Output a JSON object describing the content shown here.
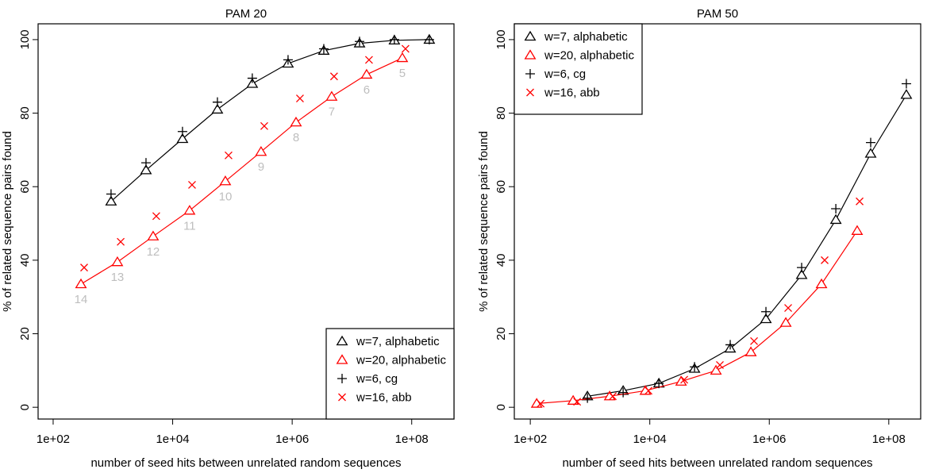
{
  "chart_data": [
    {
      "type": "scatter",
      "title": "PAM 20",
      "x_label": "number of seed hits between unrelated random sequences",
      "y_label": "% of related sequence pairs found",
      "log_x": true,
      "xlim": [
        56,
        510000000
      ],
      "ylim": [
        -3.2,
        104.3
      ],
      "xticks": [
        {
          "value": 100,
          "label": "1e+02"
        },
        {
          "value": 10000,
          "label": "1e+04"
        },
        {
          "value": 1000000,
          "label": "1e+06"
        },
        {
          "value": 100000000,
          "label": "1e+08"
        }
      ],
      "yticks": [
        0,
        20,
        40,
        60,
        80,
        100
      ],
      "legend": "bottomright",
      "series": [
        {
          "name": "w=7, alphabetic",
          "color": "#000000",
          "marker": "triangle",
          "line": true,
          "x": [
            931,
            3580,
            14600,
            56100,
            215000,
            853000,
            3380000,
            13400000,
            51300000,
            197000000
          ],
          "values": [
            56,
            64.5,
            73,
            81,
            88,
            93.5,
            97,
            99,
            99.8,
            100
          ]
        },
        {
          "name": "w=20, alphabetic",
          "color": "#ff0000",
          "marker": "triangle",
          "line": true,
          "x": [
            292,
            1190,
            4710,
            19200,
            76200,
            301000,
            1160000,
            4580000,
            17600000,
            69700000
          ],
          "values": [
            33.5,
            39.5,
            46.5,
            53.5,
            61.5,
            69.5,
            77.5,
            84.5,
            90.5,
            95
          ],
          "point_labels": [
            "14",
            "13",
            "12",
            "11",
            "10",
            "9",
            "8",
            "7",
            "6",
            "5"
          ],
          "point_label_color": "#bebebe"
        },
        {
          "name": "w=6, cg",
          "color": "#000000",
          "marker": "plus",
          "line": false,
          "x": [
            931,
            3580,
            14600,
            56100,
            215000,
            853000,
            3380000,
            13400000,
            51300000,
            197000000
          ],
          "values": [
            58,
            66.5,
            75,
            83,
            89.5,
            94.5,
            97.5,
            99.5,
            100,
            100
          ]
        },
        {
          "name": "w=16, abb",
          "color": "#ff0000",
          "marker": "x",
          "line": false,
          "x": [
            330,
            1350,
            5320,
            21100,
            86100,
            341000,
            1350000,
            5020000,
            19300000,
            78700000
          ],
          "values": [
            38,
            45,
            52,
            60.5,
            68.5,
            76.5,
            84,
            90,
            94.5,
            97.5
          ]
        }
      ]
    },
    {
      "type": "scatter",
      "title": "PAM 50",
      "x_label": "number of seed hits between unrelated random sequences",
      "y_label": "% of related sequence pairs found",
      "log_x": true,
      "xlim": [
        54,
        342000000
      ],
      "ylim": [
        -3.2,
        104.3
      ],
      "xticks": [
        {
          "value": 100,
          "label": "1e+02"
        },
        {
          "value": 10000,
          "label": "1e+04"
        },
        {
          "value": 1000000,
          "label": "1e+06"
        },
        {
          "value": 100000000,
          "label": "1e+08"
        }
      ],
      "yticks": [
        0,
        20,
        40,
        60,
        80,
        100
      ],
      "legend": "topleft",
      "series": [
        {
          "name": "w=7, alphabetic",
          "color": "#000000",
          "marker": "triangle",
          "line": true,
          "x": [
            904,
            3580,
            14200,
            56100,
            222000,
            879000,
            3480000,
            13000000,
            49800000,
            197000000
          ],
          "values": [
            3,
            4.5,
            6.5,
            10.5,
            16,
            24,
            36,
            51,
            69,
            85
          ]
        },
        {
          "name": "w=20, alphabetic",
          "color": "#ff0000",
          "marker": "triangle",
          "line": true,
          "x": [
            128,
            521,
            2130,
            8430,
            33400,
            128000,
            492000,
            1890000,
            7480000,
            29600000
          ],
          "values": [
            1,
            1.8,
            3,
            4.5,
            7,
            10,
            15,
            23,
            33.5,
            48
          ]
        },
        {
          "name": "w=6, cg",
          "color": "#000000",
          "marker": "plus",
          "line": false,
          "x": [
            904,
            3580,
            14200,
            56100,
            222000,
            879000,
            3480000,
            13000000,
            49800000,
            197000000
          ],
          "values": [
            2.5,
            4,
            6.5,
            11,
            17,
            26,
            38,
            54,
            72,
            88
          ]
        },
        {
          "name": "w=16, abb",
          "color": "#ff0000",
          "marker": "x",
          "line": false,
          "x": [
            149,
            608,
            2400,
            9530,
            37700,
            149000,
            556000,
            2070000,
            8450000,
            32500000
          ],
          "values": [
            1,
            1.5,
            3,
            4.5,
            7.5,
            11.5,
            18,
            27,
            40,
            56
          ]
        }
      ]
    }
  ]
}
